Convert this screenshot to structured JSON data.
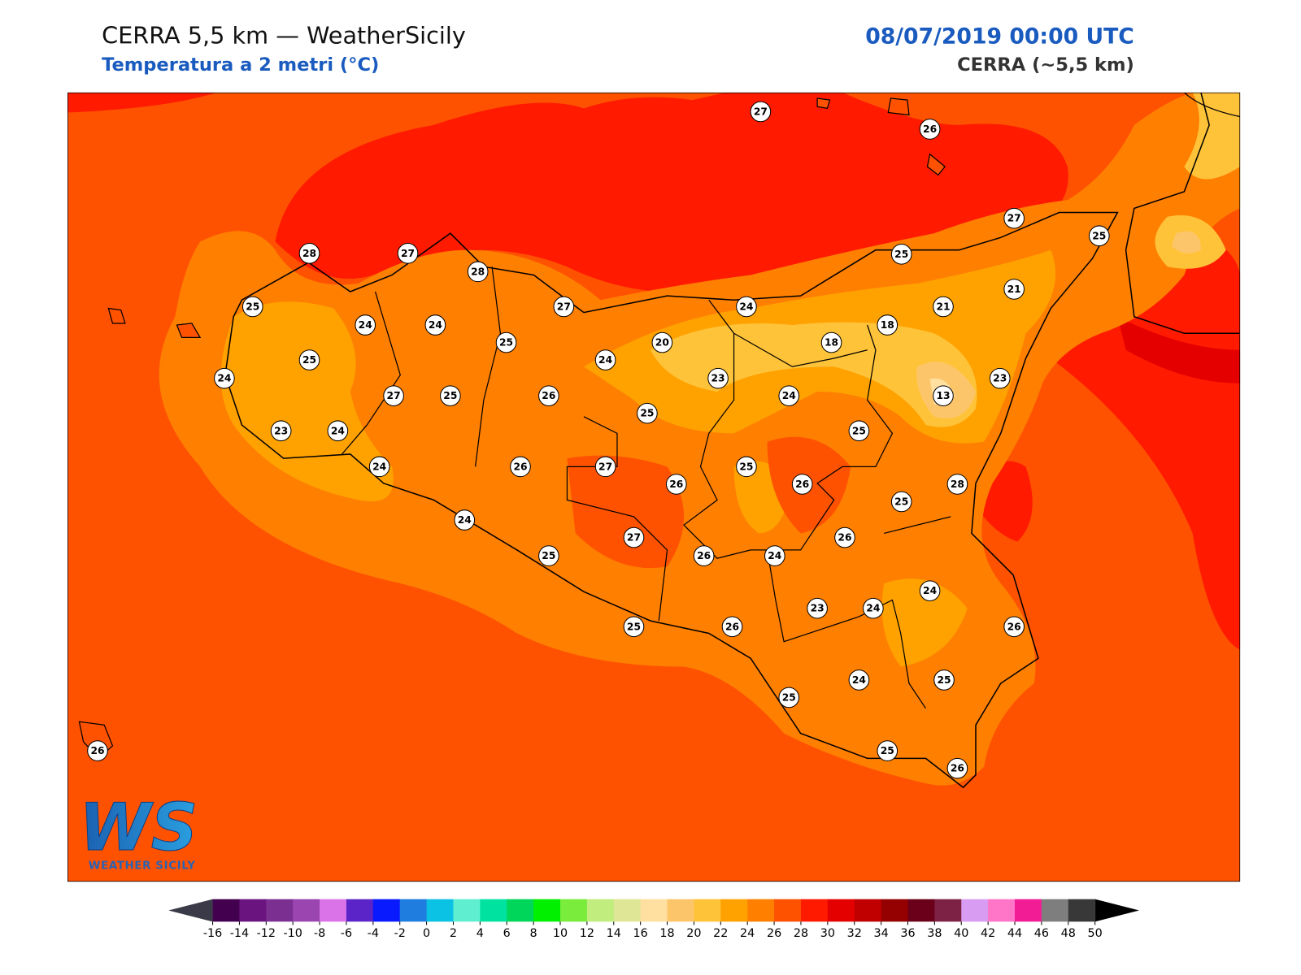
{
  "header": {
    "title": "CERRA 5,5 km — WeatherSicily",
    "subtitle": "Temperatura a 2 metri (°C)",
    "datetime": "08/07/2019 00:00 UTC",
    "model": "CERRA (~5,5 km)"
  },
  "map": {
    "stations": [
      27,
      26,
      27,
      25,
      25,
      28,
      27,
      28,
      25,
      27,
      24,
      21,
      21,
      24,
      24,
      18,
      25,
      20,
      18,
      25,
      24,
      24,
      23,
      23,
      27,
      25,
      26,
      24,
      13,
      25,
      23,
      24,
      25,
      24,
      26,
      27,
      25,
      26,
      26,
      28,
      25,
      24,
      27,
      26,
      25,
      26,
      24,
      24,
      23,
      24,
      25,
      26,
      26,
      24,
      25,
      25,
      25,
      26,
      26
    ]
  },
  "logo": {
    "mark": "WS",
    "name": "WEATHER SICILY"
  },
  "colorbar": {
    "ticks": [
      -16,
      -14,
      -12,
      -10,
      -8,
      -6,
      -4,
      -2,
      0,
      2,
      4,
      6,
      8,
      10,
      12,
      14,
      16,
      18,
      20,
      22,
      24,
      26,
      28,
      30,
      32,
      34,
      36,
      38,
      40,
      42,
      44,
      46,
      48,
      50
    ],
    "colors": [
      "#42004f",
      "#6a1480",
      "#7b2f91",
      "#9a45b0",
      "#db73e8",
      "#5a24c8",
      "#0a1aff",
      "#1e7ddf",
      "#0bc2e4",
      "#5fefd0",
      "#00e3a0",
      "#00d65a",
      "#00f000",
      "#79ec3c",
      "#c1ec7e",
      "#dfe696",
      "#ffe0a0",
      "#fdc56a",
      "#ffc339",
      "#ffa200",
      "#ff7f00",
      "#ff5200",
      "#ff1a00",
      "#e50000",
      "#c00000",
      "#950000",
      "#6b001a",
      "#7e2245",
      "#d89cf2",
      "#ff75c8",
      "#f21c95",
      "#7e7e7e",
      "#383838"
    ],
    "under_color": "#3a3a48",
    "over_color": "#000000"
  }
}
